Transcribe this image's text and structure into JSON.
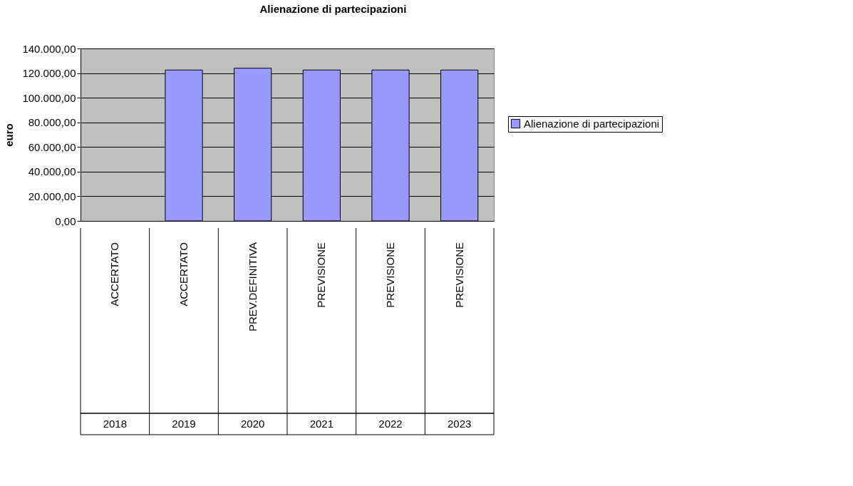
{
  "chart_data": {
    "type": "bar",
    "title": "Alienazione di partecipazioni",
    "ylabel": "euro",
    "categories": [
      "ACCERTATO\n2018",
      "ACCERTATO\n2019",
      "PREV.DEFINITIVA\n2020",
      "PREVISIONE\n2021",
      "PREVISIONE\n2022",
      "PREVISIONE\n2023"
    ],
    "series": [
      {
        "name": "Alienazione di partecipazioni",
        "color": "#9999ff",
        "values": [
          null,
          122500,
          124000,
          122500,
          122500,
          122500
        ]
      }
    ],
    "ylim": [
      0,
      140000
    ],
    "yticks": [
      {
        "value": 0,
        "label": "0,00"
      },
      {
        "value": 20000,
        "label": "20.000,00"
      },
      {
        "value": 40000,
        "label": "40.000,00"
      },
      {
        "value": 60000,
        "label": "60.000,00"
      },
      {
        "value": 80000,
        "label": "80.000,00"
      },
      {
        "value": 100000,
        "label": "100.000,00"
      },
      {
        "value": 120000,
        "label": "120.000,00"
      },
      {
        "value": 140000,
        "label": "140.000,00"
      }
    ],
    "grid": "y",
    "legend": "right"
  }
}
